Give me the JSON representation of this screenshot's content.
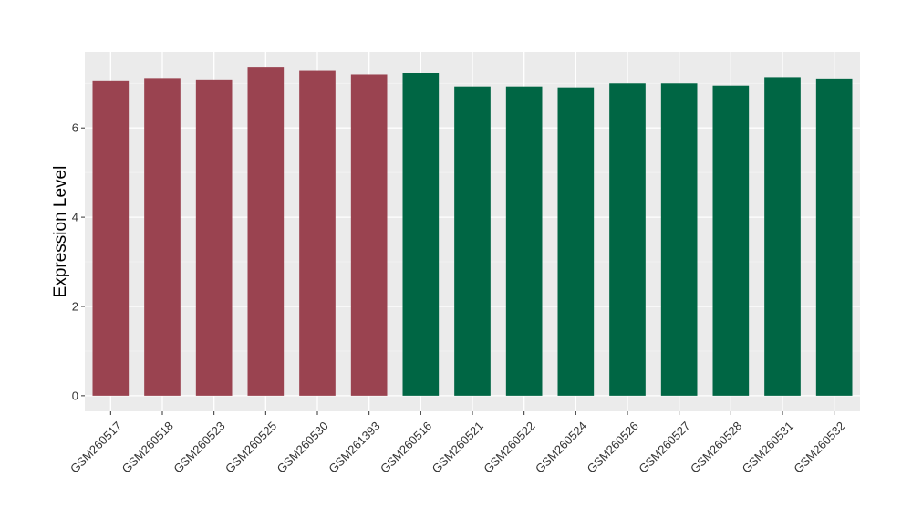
{
  "chart_data": {
    "type": "bar",
    "title": "",
    "xlabel": "",
    "ylabel": "Expression Level",
    "ylim": [
      -0.35,
      7.7
    ],
    "yticks": [
      0,
      2,
      4,
      6
    ],
    "grid": true,
    "background": "#ebebeb",
    "categories": [
      "GSM260517",
      "GSM260518",
      "GSM260523",
      "GSM260525",
      "GSM260530",
      "GSM261393",
      "GSM260516",
      "GSM260521",
      "GSM260522",
      "GSM260524",
      "GSM260526",
      "GSM260527",
      "GSM260528",
      "GSM260531",
      "GSM260532"
    ],
    "values": [
      7.05,
      7.1,
      7.07,
      7.35,
      7.28,
      7.2,
      7.23,
      6.93,
      6.93,
      6.91,
      7.0,
      7.0,
      6.95,
      7.14,
      7.09
    ],
    "bar_colors": [
      "#9a4350",
      "#9a4350",
      "#9a4350",
      "#9a4350",
      "#9a4350",
      "#9a4350",
      "#006644",
      "#006644",
      "#006644",
      "#006644",
      "#006644",
      "#006644",
      "#006644",
      "#006644",
      "#006644"
    ]
  }
}
